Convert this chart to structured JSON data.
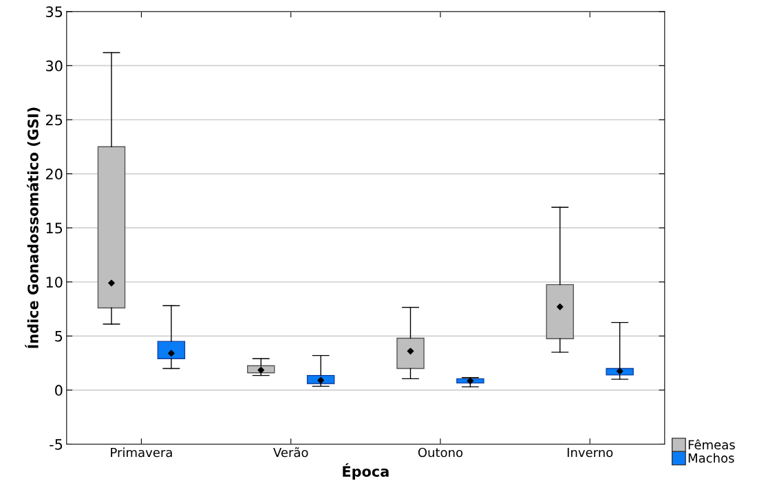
{
  "chart_data": {
    "type": "box",
    "xlabel": "Época",
    "ylabel": "Índice Gonadossomático (GSI)",
    "categories": [
      "Primavera",
      "Verão",
      "Outono",
      "Inverno"
    ],
    "ylim": [
      -5,
      35
    ],
    "yticks": [
      -5,
      0,
      5,
      10,
      15,
      20,
      25,
      30,
      35
    ],
    "grid": "y",
    "legend": "bottom right",
    "marker": "diamond",
    "series": [
      {
        "name": "Fêmeas",
        "color": "#bebebe",
        "boxes": [
          {
            "low": 6.1,
            "q1": 7.6,
            "median": 9.9,
            "q3": 22.5,
            "high": 31.2
          },
          {
            "low": 1.35,
            "q1": 1.6,
            "median": 1.85,
            "q3": 2.25,
            "high": 2.9
          },
          {
            "low": 1.05,
            "q1": 2.0,
            "median": 3.6,
            "q3": 4.8,
            "high": 7.65
          },
          {
            "low": 3.5,
            "q1": 4.75,
            "median": 7.7,
            "q3": 9.75,
            "high": 16.9
          }
        ]
      },
      {
        "name": "Machos",
        "color": "#0a7cf5",
        "boxes": [
          {
            "low": 2.0,
            "q1": 2.9,
            "median": 3.4,
            "q3": 4.5,
            "high": 7.8
          },
          {
            "low": 0.35,
            "q1": 0.6,
            "median": 0.9,
            "q3": 1.35,
            "high": 3.2
          },
          {
            "low": 0.3,
            "q1": 0.65,
            "median": 0.85,
            "q3": 1.05,
            "high": 1.15
          },
          {
            "low": 1.0,
            "q1": 1.4,
            "median": 1.75,
            "q3": 2.0,
            "high": 6.25
          }
        ]
      }
    ]
  }
}
